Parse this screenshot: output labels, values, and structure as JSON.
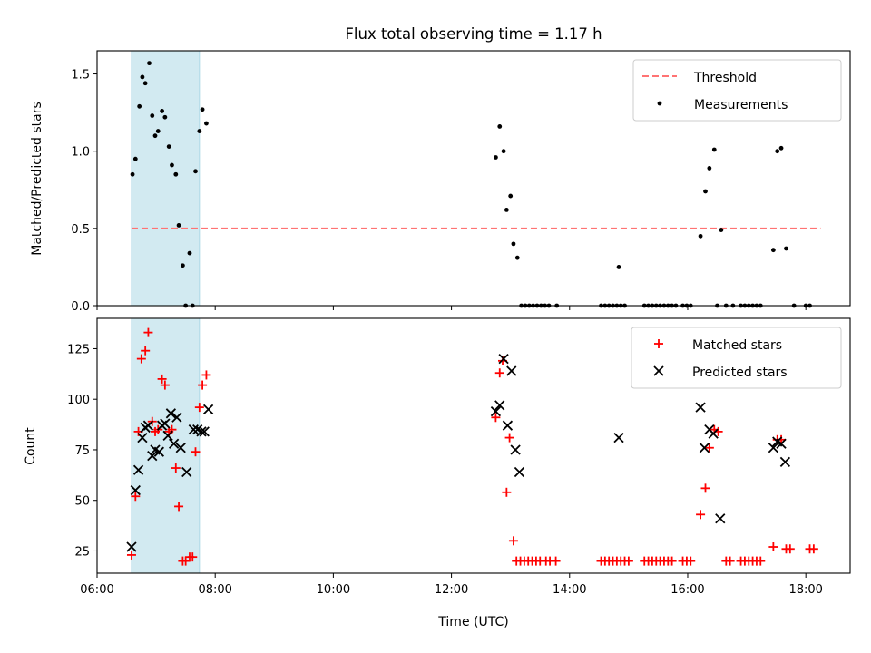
{
  "title": "Flux total observing time = 1.17 h",
  "colors": {
    "threshold": "#ff7373",
    "measurement": "#000000",
    "matched": "#ff0000",
    "predicted": "#000000",
    "shade": "#add8e6"
  },
  "chart_data": [
    {
      "type": "scatter",
      "panel": "top",
      "xlabel": "",
      "ylabel": "Matched/Predicted stars",
      "xlim": [
        "06:00",
        "18:45"
      ],
      "ylim": [
        0,
        1.65
      ],
      "yticks": [
        "0.0",
        "0.5",
        "1.0",
        "1.5"
      ],
      "legend_position": "top-right",
      "shaded_region": {
        "x": [
          "06:35",
          "07:44"
        ]
      },
      "threshold": {
        "name": "Threshold",
        "y": 0.5,
        "x": [
          "06:35",
          "18:15"
        ]
      },
      "series": [
        {
          "name": "Measurements",
          "marker": "dot",
          "points": [
            [
              "06:36",
              0.85
            ],
            [
              "06:39",
              0.95
            ],
            [
              "06:43",
              1.29
            ],
            [
              "06:46",
              1.48
            ],
            [
              "06:49",
              1.44
            ],
            [
              "06:53",
              1.57
            ],
            [
              "06:56",
              1.23
            ],
            [
              "06:59",
              1.1
            ],
            [
              "07:02",
              1.13
            ],
            [
              "07:06",
              1.26
            ],
            [
              "07:09",
              1.22
            ],
            [
              "07:13",
              1.03
            ],
            [
              "07:16",
              0.91
            ],
            [
              "07:20",
              0.85
            ],
            [
              "07:23",
              0.52
            ],
            [
              "07:27",
              0.26
            ],
            [
              "07:30",
              0.0
            ],
            [
              "07:34",
              0.34
            ],
            [
              "07:37",
              0.0
            ],
            [
              "07:40",
              0.87
            ],
            [
              "07:44",
              1.13
            ],
            [
              "07:47",
              1.27
            ],
            [
              "07:51",
              1.18
            ],
            [
              "12:45",
              0.96
            ],
            [
              "12:49",
              1.16
            ],
            [
              "12:53",
              1.0
            ],
            [
              "12:56",
              0.62
            ],
            [
              "13:00",
              0.71
            ],
            [
              "13:03",
              0.4
            ],
            [
              "13:07",
              0.31
            ],
            [
              "13:11",
              0.0
            ],
            [
              "13:15",
              0.0
            ],
            [
              "13:19",
              0.0
            ],
            [
              "13:23",
              0.0
            ],
            [
              "13:27",
              0.0
            ],
            [
              "13:31",
              0.0
            ],
            [
              "13:35",
              0.0
            ],
            [
              "13:39",
              0.0
            ],
            [
              "13:47",
              0.0
            ],
            [
              "14:32",
              0.0
            ],
            [
              "14:36",
              0.0
            ],
            [
              "14:40",
              0.0
            ],
            [
              "14:44",
              0.0
            ],
            [
              "14:48",
              0.0
            ],
            [
              "14:52",
              0.0
            ],
            [
              "14:56",
              0.0
            ],
            [
              "14:50",
              0.25
            ],
            [
              "15:16",
              0.0
            ],
            [
              "15:20",
              0.0
            ],
            [
              "15:24",
              0.0
            ],
            [
              "15:28",
              0.0
            ],
            [
              "15:32",
              0.0
            ],
            [
              "15:36",
              0.0
            ],
            [
              "15:40",
              0.0
            ],
            [
              "15:44",
              0.0
            ],
            [
              "15:48",
              0.0
            ],
            [
              "15:55",
              0.0
            ],
            [
              "15:59",
              0.0
            ],
            [
              "16:03",
              0.0
            ],
            [
              "16:13",
              0.45
            ],
            [
              "16:18",
              0.74
            ],
            [
              "16:22",
              0.89
            ],
            [
              "16:27",
              1.01
            ],
            [
              "16:34",
              0.49
            ],
            [
              "16:30",
              0.0
            ],
            [
              "16:39",
              0.0
            ],
            [
              "16:46",
              0.0
            ],
            [
              "16:54",
              0.0
            ],
            [
              "16:58",
              0.0
            ],
            [
              "17:02",
              0.0
            ],
            [
              "17:06",
              0.0
            ],
            [
              "17:10",
              0.0
            ],
            [
              "17:14",
              0.0
            ],
            [
              "17:27",
              0.36
            ],
            [
              "17:31",
              1.0
            ],
            [
              "17:35",
              1.02
            ],
            [
              "17:40",
              0.37
            ],
            [
              "17:48",
              0.0
            ],
            [
              "18:00",
              0.0
            ],
            [
              "18:04",
              0.0
            ]
          ]
        }
      ]
    },
    {
      "type": "scatter",
      "panel": "bottom",
      "xlabel": "Time (UTC)",
      "ylabel": "Count",
      "xlim": [
        "06:00",
        "18:45"
      ],
      "ylim": [
        14,
        140
      ],
      "xticks": [
        "06:00",
        "08:00",
        "10:00",
        "12:00",
        "14:00",
        "16:00",
        "18:00"
      ],
      "yticks": [
        "25",
        "50",
        "75",
        "100",
        "125"
      ],
      "legend_position": "top-right",
      "shaded_region": {
        "x": [
          "06:35",
          "07:44"
        ]
      },
      "series": [
        {
          "name": "Matched stars",
          "marker": "plus",
          "points": [
            [
              "06:35",
              23
            ],
            [
              "06:39",
              52
            ],
            [
              "06:42",
              84
            ],
            [
              "06:45",
              120
            ],
            [
              "06:49",
              124
            ],
            [
              "06:52",
              133
            ],
            [
              "06:56",
              89
            ],
            [
              "06:59",
              84
            ],
            [
              "07:02",
              85
            ],
            [
              "07:06",
              110
            ],
            [
              "07:09",
              107
            ],
            [
              "07:13",
              84
            ],
            [
              "07:16",
              85
            ],
            [
              "07:20",
              66
            ],
            [
              "07:23",
              47
            ],
            [
              "07:27",
              20
            ],
            [
              "07:30",
              20
            ],
            [
              "07:34",
              22
            ],
            [
              "07:37",
              22
            ],
            [
              "07:40",
              74
            ],
            [
              "07:44",
              96
            ],
            [
              "07:47",
              107
            ],
            [
              "07:51",
              112
            ],
            [
              "12:45",
              91
            ],
            [
              "12:49",
              113
            ],
            [
              "12:52",
              119
            ],
            [
              "12:56",
              54
            ],
            [
              "12:59",
              81
            ],
            [
              "13:03",
              30
            ],
            [
              "13:06",
              20
            ],
            [
              "13:10",
              20
            ],
            [
              "13:14",
              20
            ],
            [
              "13:18",
              20
            ],
            [
              "13:22",
              20
            ],
            [
              "13:26",
              20
            ],
            [
              "13:30",
              20
            ],
            [
              "13:36",
              20
            ],
            [
              "13:40",
              20
            ],
            [
              "13:46",
              20
            ],
            [
              "14:32",
              20
            ],
            [
              "14:36",
              20
            ],
            [
              "14:40",
              20
            ],
            [
              "14:44",
              20
            ],
            [
              "14:48",
              20
            ],
            [
              "14:52",
              20
            ],
            [
              "14:56",
              20
            ],
            [
              "15:00",
              20
            ],
            [
              "15:16",
              20
            ],
            [
              "15:20",
              20
            ],
            [
              "15:24",
              20
            ],
            [
              "15:28",
              20
            ],
            [
              "15:32",
              20
            ],
            [
              "15:36",
              20
            ],
            [
              "15:40",
              20
            ],
            [
              "15:44",
              20
            ],
            [
              "15:55",
              20
            ],
            [
              "15:59",
              20
            ],
            [
              "16:03",
              20
            ],
            [
              "16:13",
              43
            ],
            [
              "16:18",
              56
            ],
            [
              "16:22",
              76
            ],
            [
              "16:27",
              85
            ],
            [
              "16:31",
              84
            ],
            [
              "16:39",
              20
            ],
            [
              "16:43",
              20
            ],
            [
              "16:54",
              20
            ],
            [
              "16:58",
              20
            ],
            [
              "17:02",
              20
            ],
            [
              "17:06",
              20
            ],
            [
              "17:10",
              20
            ],
            [
              "17:14",
              20
            ],
            [
              "17:27",
              27
            ],
            [
              "17:31",
              80
            ],
            [
              "17:35",
              80
            ],
            [
              "17:40",
              26
            ],
            [
              "17:44",
              26
            ],
            [
              "18:04",
              26
            ],
            [
              "18:08",
              26
            ]
          ]
        },
        {
          "name": "Predicted stars",
          "marker": "x",
          "points": [
            [
              "06:35",
              27
            ],
            [
              "06:39",
              55
            ],
            [
              "06:42",
              65
            ],
            [
              "06:46",
              81
            ],
            [
              "06:49",
              86
            ],
            [
              "06:52",
              87
            ],
            [
              "06:56",
              72
            ],
            [
              "06:59",
              75
            ],
            [
              "07:03",
              74
            ],
            [
              "07:06",
              87
            ],
            [
              "07:09",
              88
            ],
            [
              "07:12",
              82
            ],
            [
              "07:15",
              93
            ],
            [
              "07:18",
              78
            ],
            [
              "07:21",
              91
            ],
            [
              "07:25",
              76
            ],
            [
              "07:31",
              64
            ],
            [
              "07:38",
              85
            ],
            [
              "07:42",
              85
            ],
            [
              "07:46",
              84
            ],
            [
              "07:49",
              84
            ],
            [
              "07:53",
              95
            ],
            [
              "12:45",
              94
            ],
            [
              "12:49",
              97
            ],
            [
              "12:53",
              120
            ],
            [
              "12:57",
              87
            ],
            [
              "13:01",
              114
            ],
            [
              "13:05",
              75
            ],
            [
              "13:09",
              64
            ],
            [
              "14:50",
              81
            ],
            [
              "16:13",
              96
            ],
            [
              "16:17",
              76
            ],
            [
              "16:22",
              85
            ],
            [
              "16:26",
              83
            ],
            [
              "16:33",
              41
            ],
            [
              "17:27",
              76
            ],
            [
              "17:31",
              79
            ],
            [
              "17:35",
              78
            ],
            [
              "17:39",
              69
            ]
          ]
        }
      ]
    }
  ]
}
